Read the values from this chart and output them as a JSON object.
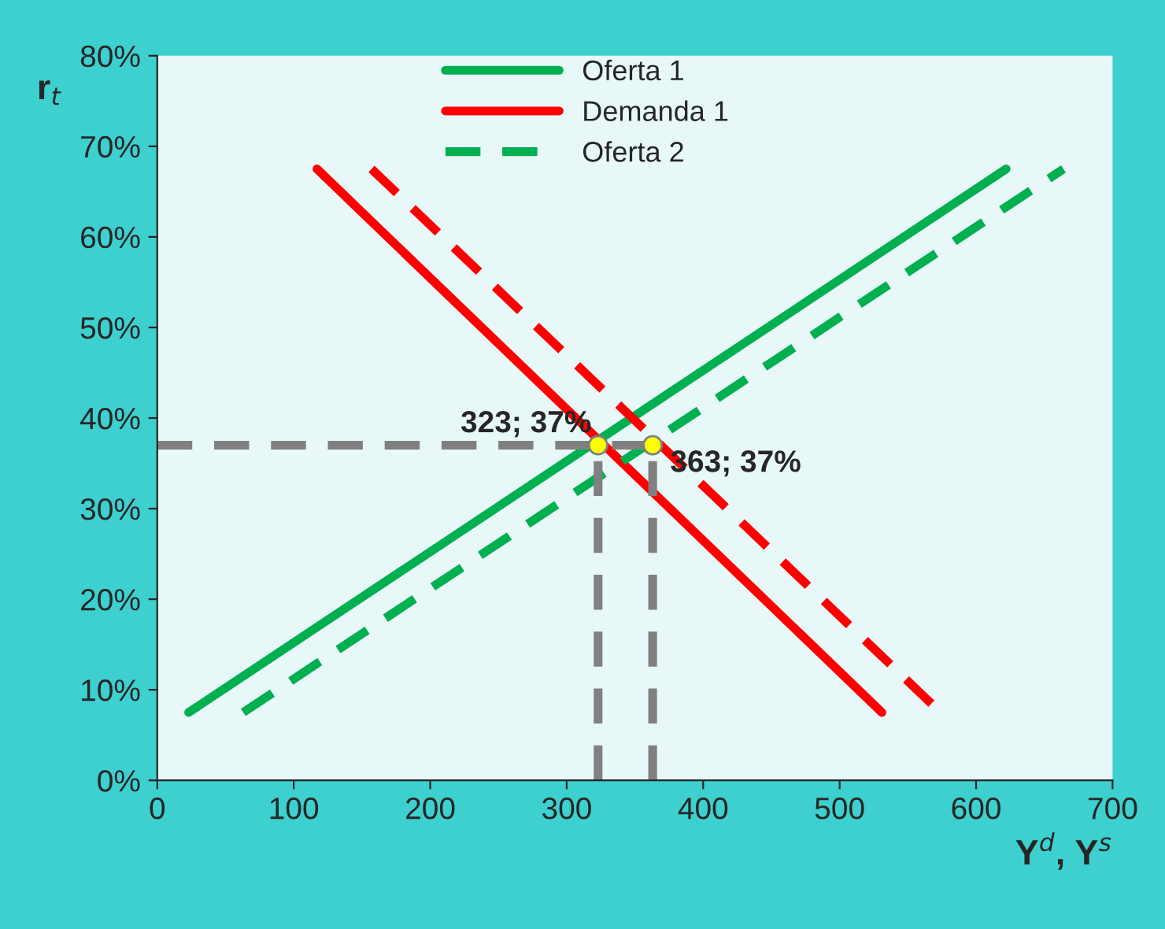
{
  "chart_data": {
    "type": "line",
    "xlabel": "Y$^{d}$, Y$^{s}$",
    "ylabel": "r$_{t}$",
    "xlim": [
      0,
      700
    ],
    "xticks": [
      0,
      100,
      200,
      300,
      400,
      500,
      600,
      700
    ],
    "ylim": [
      0,
      80
    ],
    "yticks": [
      {
        "value": 0,
        "label": "0%"
      },
      {
        "value": 10,
        "label": "10%"
      },
      {
        "value": 20,
        "label": "20%"
      },
      {
        "value": 30,
        "label": "30%"
      },
      {
        "value": 40,
        "label": "40%"
      },
      {
        "value": 50,
        "label": "50%"
      },
      {
        "value": 60,
        "label": "60%"
      },
      {
        "value": 70,
        "label": "70%"
      },
      {
        "value": 80,
        "label": "80%"
      }
    ],
    "series": [
      {
        "name": "Oferta 1",
        "color": "#00b050",
        "x": [
          23,
          622
        ],
        "values": [
          7.5,
          67.5
        ],
        "line_style": "solid"
      },
      {
        "name": "Demanda 1",
        "color": "#ff0000",
        "x": [
          117,
          531
        ],
        "values": [
          67.5,
          7.5
        ],
        "line_style": "solid"
      },
      {
        "name": "Oferta 2",
        "color": "#00b050",
        "x": [
          63,
          664
        ],
        "values": [
          7.5,
          67.5
        ],
        "line_style": "dashed"
      },
      {
        "color": "#ff0000",
        "x": [
          157,
          574
        ],
        "values": [
          67.5,
          7.5
        ],
        "line_style": "dashed"
      },
      {
        "color": "#808080",
        "x": [
          0,
          363
        ],
        "values": [
          37,
          37
        ],
        "line_style": "dashed"
      },
      {
        "color": "#808080",
        "x": [
          323,
          323
        ],
        "values": [
          0,
          37
        ],
        "line_style": "dashed"
      },
      {
        "color": "#808080",
        "x": [
          363,
          363
        ],
        "values": [
          0,
          37
        ],
        "line_style": "dashed"
      },
      {
        "type": "scatter",
        "color": "#ffff00",
        "x": [
          323,
          363
        ],
        "values": [
          37,
          37
        ]
      }
    ],
    "annotations": [
      {
        "text": "323; 37%",
        "x": 323,
        "y": 37
      },
      {
        "text": "363; 37%",
        "x": 363,
        "y": 37
      }
    ],
    "legend": "top",
    "grid": false
  }
}
